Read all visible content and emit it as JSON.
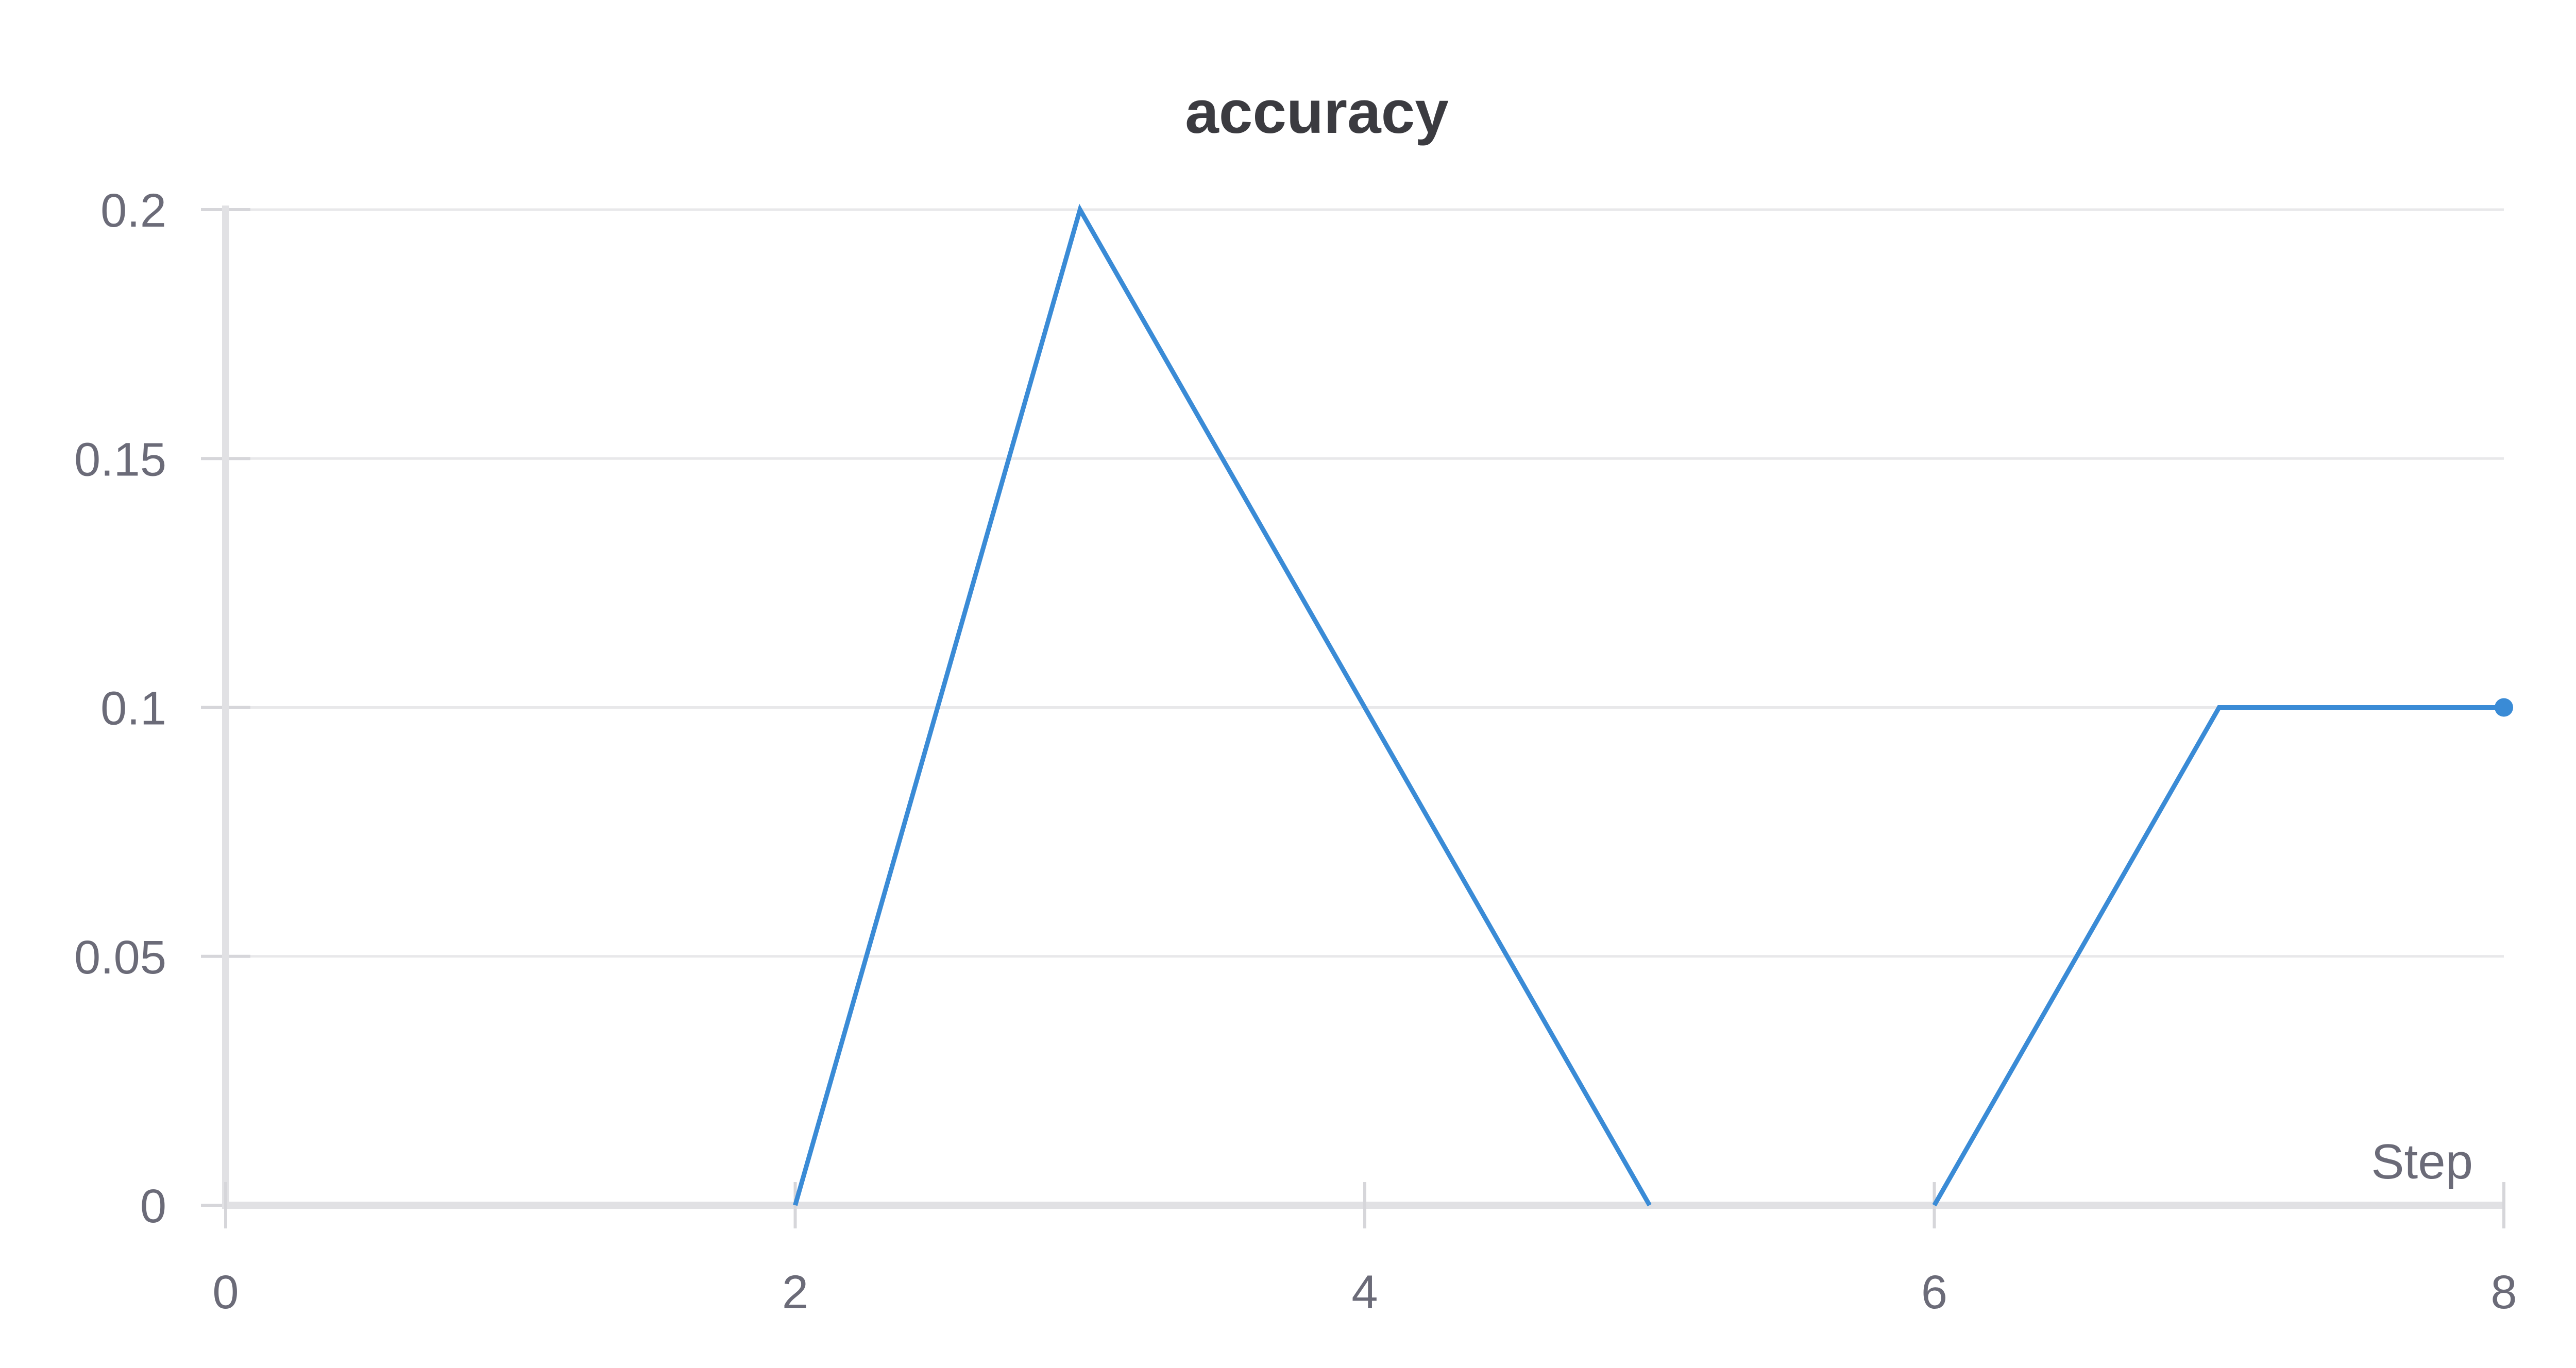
{
  "chart_data": {
    "type": "line",
    "title": "accuracy",
    "xlabel": "Step",
    "ylabel": "",
    "xlim": [
      0,
      8
    ],
    "ylim": [
      0,
      0.2
    ],
    "x_ticks": [
      "0",
      "2",
      "4",
      "6",
      "8"
    ],
    "y_ticks": [
      "0",
      "0.05",
      "0.1",
      "0.15",
      "0.2"
    ],
    "grid": true,
    "legend": "none",
    "colors": {
      "series": "#3a8bd6"
    },
    "series": [
      {
        "x": [
          2,
          3,
          4,
          5,
          6,
          7,
          8
        ],
        "y": [
          0,
          0.2,
          0.1,
          0,
          0,
          0.1,
          0.1
        ],
        "segments": [
          [
            0,
            1,
            2,
            3
          ],
          [
            4,
            5,
            6
          ]
        ],
        "last_point_marker": true
      }
    ]
  }
}
